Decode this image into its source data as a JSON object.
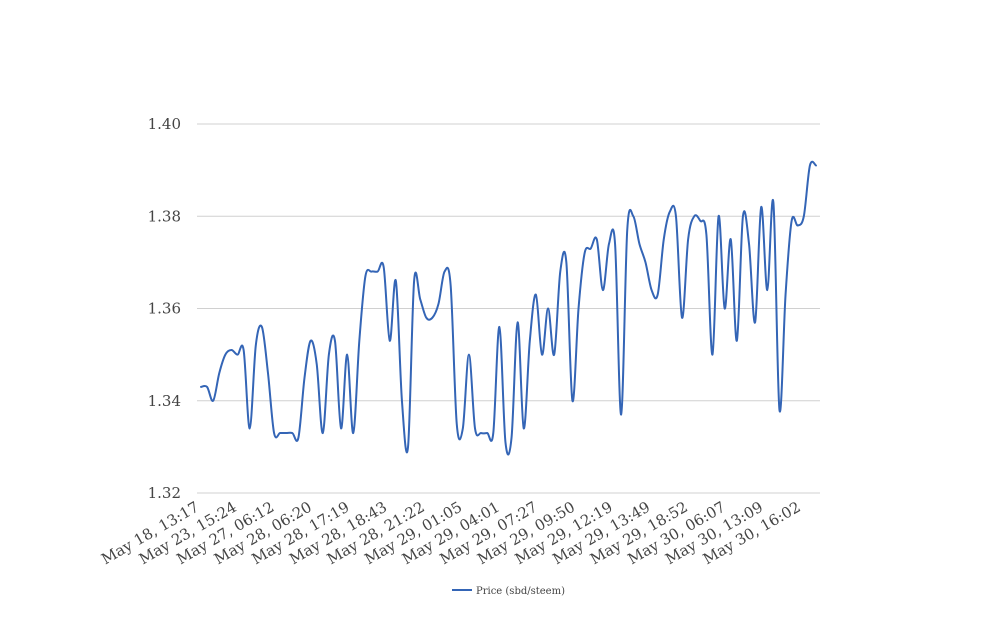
{
  "chart_data": {
    "type": "line",
    "title": "",
    "xlabel": "",
    "ylabel": "",
    "ylim": [
      1.32,
      1.4
    ],
    "yticks": [
      "1.32",
      "1.34",
      "1.36",
      "1.38",
      "1.40"
    ],
    "grid": true,
    "legend_position": "bottom",
    "x_tick_labels": [
      "May 18, 13:17",
      "May 23, 15:24",
      "May 27, 06:12",
      "May 28, 06:20",
      "May 28, 17:19",
      "May 28, 18:43",
      "May 28, 21:22",
      "May 29, 01:05",
      "May 29, 04:01",
      "May 29, 07:27",
      "May 29, 09:50",
      "May 29, 12:19",
      "May 29, 13:49",
      "May 29, 18:52",
      "May 30, 06:07",
      "May 30, 13:09",
      "May 30, 16:02"
    ],
    "series": [
      {
        "name": "Price (sbd/steem)",
        "color": "#3465b6",
        "values": [
          1.343,
          1.343,
          1.34,
          1.346,
          1.35,
          1.351,
          1.35,
          1.351,
          1.334,
          1.352,
          1.356,
          1.346,
          1.333,
          1.333,
          1.333,
          1.333,
          1.332,
          1.345,
          1.353,
          1.348,
          1.333,
          1.35,
          1.353,
          1.334,
          1.35,
          1.333,
          1.353,
          1.367,
          1.368,
          1.368,
          1.369,
          1.353,
          1.366,
          1.34,
          1.33,
          1.366,
          1.362,
          1.358,
          1.358,
          1.361,
          1.368,
          1.365,
          1.335,
          1.334,
          1.35,
          1.334,
          1.333,
          1.333,
          1.333,
          1.356,
          1.331,
          1.332,
          1.357,
          1.334,
          1.353,
          1.363,
          1.35,
          1.36,
          1.35,
          1.368,
          1.37,
          1.34,
          1.36,
          1.372,
          1.373,
          1.375,
          1.364,
          1.374,
          1.374,
          1.337,
          1.377,
          1.38,
          1.374,
          1.37,
          1.364,
          1.363,
          1.375,
          1.381,
          1.38,
          1.358,
          1.375,
          1.38,
          1.379,
          1.376,
          1.35,
          1.38,
          1.36,
          1.375,
          1.353,
          1.38,
          1.374,
          1.357,
          1.382,
          1.364,
          1.383,
          1.338,
          1.363,
          1.379,
          1.378,
          1.38,
          1.391,
          1.391
        ]
      }
    ]
  }
}
